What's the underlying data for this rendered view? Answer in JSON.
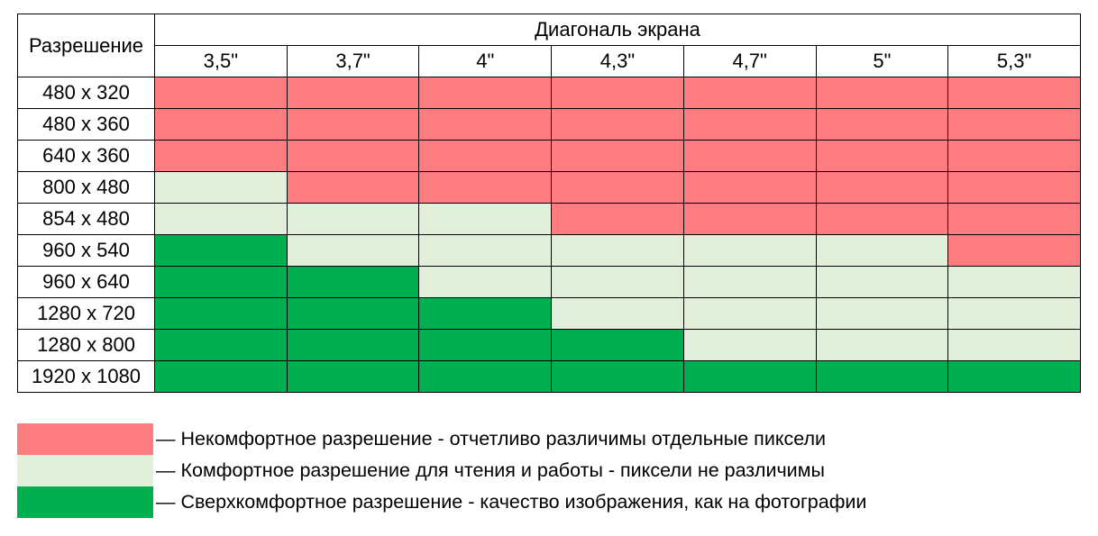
{
  "chart_data": {
    "type": "table",
    "row_header": "Разрешение",
    "column_group_header": "Диагональ экрана",
    "columns": [
      "3,5\"",
      "3,7\"",
      "4\"",
      "4,3\"",
      "4,7\"",
      "5\"",
      "5,3\""
    ],
    "rows": [
      "480 x 320",
      "480 x 360",
      "640 x 360",
      "800 x 480",
      "854 x 480",
      "960 x 540",
      "960 x 640",
      "1280 x 720",
      "1280 x 800",
      "1920 x 1080"
    ],
    "categories": {
      "uncomfortable": "#ff7c80",
      "comfortable": "#e2efda",
      "super_comfortable": "#00b050"
    },
    "cells": [
      [
        "uncomfortable",
        "uncomfortable",
        "uncomfortable",
        "uncomfortable",
        "uncomfortable",
        "uncomfortable",
        "uncomfortable"
      ],
      [
        "uncomfortable",
        "uncomfortable",
        "uncomfortable",
        "uncomfortable",
        "uncomfortable",
        "uncomfortable",
        "uncomfortable"
      ],
      [
        "uncomfortable",
        "uncomfortable",
        "uncomfortable",
        "uncomfortable",
        "uncomfortable",
        "uncomfortable",
        "uncomfortable"
      ],
      [
        "comfortable",
        "uncomfortable",
        "uncomfortable",
        "uncomfortable",
        "uncomfortable",
        "uncomfortable",
        "uncomfortable"
      ],
      [
        "comfortable",
        "comfortable",
        "comfortable",
        "uncomfortable",
        "uncomfortable",
        "uncomfortable",
        "uncomfortable"
      ],
      [
        "super_comfortable",
        "comfortable",
        "comfortable",
        "comfortable",
        "comfortable",
        "comfortable",
        "uncomfortable"
      ],
      [
        "super_comfortable",
        "super_comfortable",
        "comfortable",
        "comfortable",
        "comfortable",
        "comfortable",
        "comfortable"
      ],
      [
        "super_comfortable",
        "super_comfortable",
        "super_comfortable",
        "comfortable",
        "comfortable",
        "comfortable",
        "comfortable"
      ],
      [
        "super_comfortable",
        "super_comfortable",
        "super_comfortable",
        "super_comfortable",
        "comfortable",
        "comfortable",
        "comfortable"
      ],
      [
        "super_comfortable",
        "super_comfortable",
        "super_comfortable",
        "super_comfortable",
        "super_comfortable",
        "super_comfortable",
        "super_comfortable"
      ]
    ],
    "legend": [
      {
        "category": "uncomfortable",
        "label": "— Некомфортное разрешение - отчетливо различимы отдельные пиксели"
      },
      {
        "category": "comfortable",
        "label": "— Комфортное разрешение для чтения и работы - пиксели не различимы"
      },
      {
        "category": "super_comfortable",
        "label": "— Сверхкомфортное разрешение - качество изображения, как на фотографии"
      }
    ],
    "legend_placement": "bottom-left"
  }
}
